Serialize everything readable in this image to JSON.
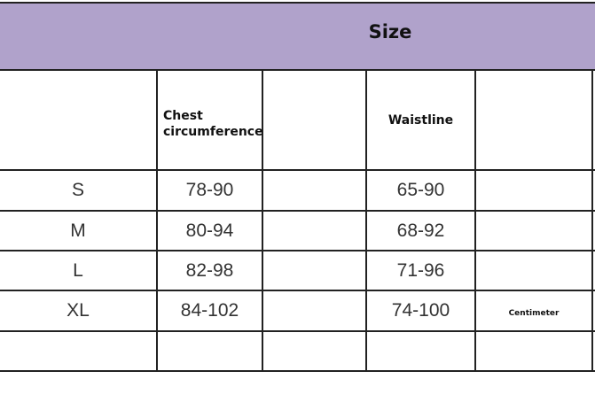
{
  "title": "Size",
  "headers": {
    "chest": "Chest circumference",
    "waist": "Waistline"
  },
  "unit": "Centimeter",
  "header_color": "#b0a2cb",
  "rows": [
    {
      "size": "S",
      "chest": "78-90",
      "waist": "65-90"
    },
    {
      "size": "M",
      "chest": "80-94",
      "waist": "68-92"
    },
    {
      "size": "L",
      "chest": "82-98",
      "waist": "71-96"
    },
    {
      "size": "XL",
      "chest": "84-102",
      "waist": "74-100"
    }
  ]
}
